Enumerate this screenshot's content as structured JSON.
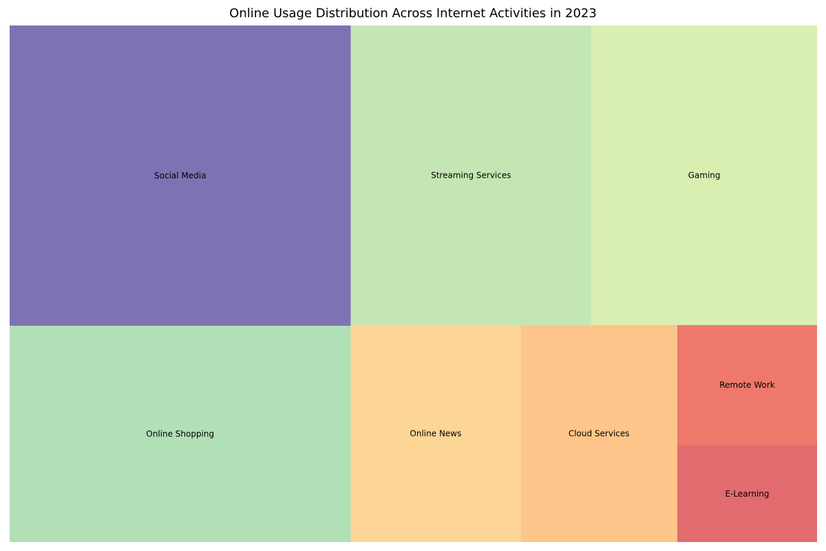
{
  "chart_data": {
    "type": "treemap",
    "title": "Online Usage Distribution Across Internet Activities in 2023",
    "items": [
      {
        "label": "Social Media",
        "value": 25,
        "color": "#7e72b4"
      },
      {
        "label": "Online Shopping",
        "value": 18,
        "color": "#b1dfb6"
      },
      {
        "label": "Streaming Services",
        "value": 17.6,
        "color": "#c4e6b5"
      },
      {
        "label": "Gaming",
        "value": 16.5,
        "color": "#d9efb1"
      },
      {
        "label": "Online News",
        "value": 9,
        "color": "#fdd697"
      },
      {
        "label": "Cloud Services",
        "value": 8.3,
        "color": "#fdc58a"
      },
      {
        "label": "Remote Work",
        "value": 4.1,
        "color": "#ee786c"
      },
      {
        "label": "E-Learning",
        "value": 3.3,
        "color": "#e26b6f"
      }
    ]
  }
}
